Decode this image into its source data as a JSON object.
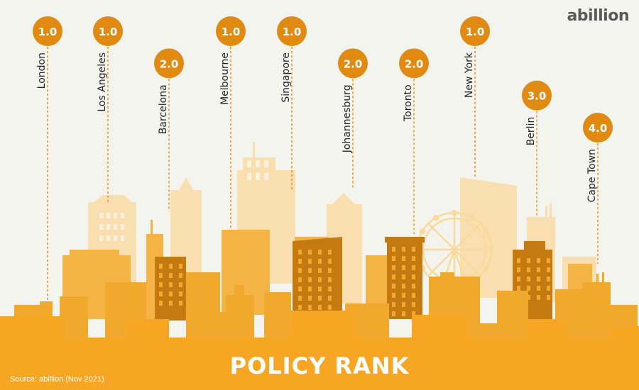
{
  "brand": {
    "logo_text": "abillion"
  },
  "footer": {
    "title": "POLICY RANK",
    "source": "Source: abillion (Nov 2021)"
  },
  "colors": {
    "accent": "#e08a12",
    "background": "#f4f4ef",
    "building_dark": "#c47a10",
    "building_mid": "#f0a92d",
    "building_light": "#fbd99c",
    "footer_band": "#f6a623"
  },
  "chart_data": {
    "type": "scatter",
    "title": "POLICY RANK",
    "xlabel": "",
    "ylabel": "",
    "ylim": [
      1,
      4
    ],
    "y_inverted": true,
    "categories": [
      "London",
      "Los Angeles",
      "Barcelona",
      "Melbourne",
      "Singapore",
      "Johannesburg",
      "Toronto",
      "New York",
      "Berlin",
      "Cape Town"
    ],
    "values": [
      1.0,
      1.0,
      2.0,
      1.0,
      1.0,
      2.0,
      2.0,
      1.0,
      3.0,
      4.0
    ],
    "value_labels": [
      "1.0",
      "1.0",
      "2.0",
      "1.0",
      "1.0",
      "2.0",
      "2.0",
      "1.0",
      "3.0",
      "4.0"
    ]
  }
}
